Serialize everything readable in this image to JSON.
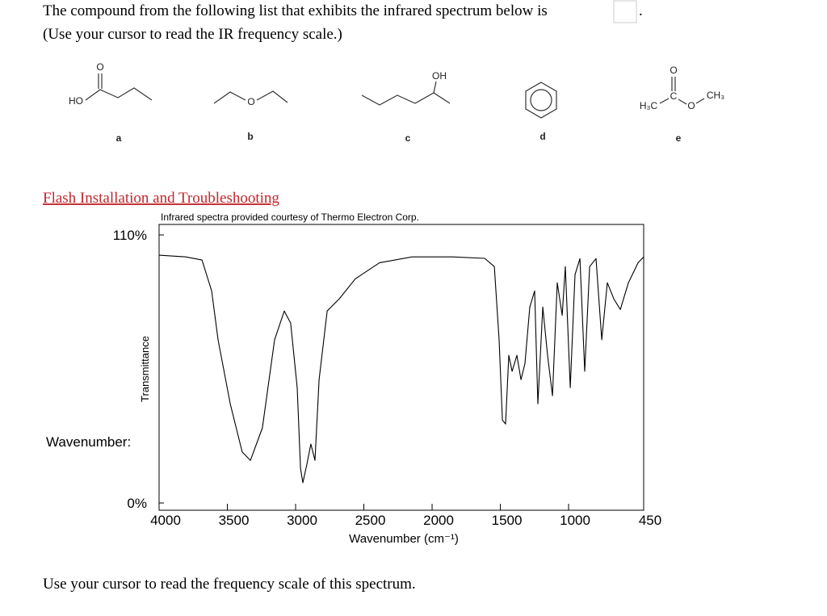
{
  "question": {
    "text": "The compound from the following list that exhibits the infrared spectrum below is",
    "end": ".",
    "instruction": "(Use your cursor to read the IR frequency scale.)"
  },
  "compounds": [
    {
      "letter": "a",
      "atoms": [
        "HO",
        "O"
      ]
    },
    {
      "letter": "b",
      "atoms": [
        "O"
      ]
    },
    {
      "letter": "c",
      "atoms": [
        "OH"
      ]
    },
    {
      "letter": "d"
    },
    {
      "letter": "e",
      "atoms": [
        "H₃C",
        "C",
        "O",
        "O",
        "CH₃"
      ]
    }
  ],
  "link": "Flash Installation and Troubleshooting",
  "chart_data": {
    "type": "line",
    "subtitle": "Infrared spectra provided courtesy of Thermo Electron Corp.",
    "x_label": "Wavenumber (cm⁻¹)",
    "y_label": "Transmittance",
    "annotation": "Wavenumber:",
    "x": [
      4000,
      3805,
      3686,
      3615,
      3568,
      3479,
      3391,
      3331,
      3243,
      3154,
      3083,
      3036,
      2988,
      2964,
      2947,
      2917,
      2888,
      2858,
      2828,
      2769,
      2680,
      2562,
      2385,
      2148,
      1852,
      1615,
      1544,
      1509,
      1485,
      1462,
      1438,
      1414,
      1379,
      1349,
      1320,
      1284,
      1249,
      1225,
      1189,
      1154,
      1118,
      1083,
      1047,
      1024,
      988,
      953,
      917,
      882,
      846,
      799,
      757,
      716,
      669,
      621,
      562,
      491,
      450
    ],
    "values": [
      101.7,
      101,
      99.7,
      87,
      67,
      40.7,
      20.9,
      17.5,
      30.8,
      67,
      78.8,
      73.8,
      47.3,
      14.2,
      8.3,
      15.9,
      24.2,
      17.5,
      50.6,
      78.8,
      83.8,
      92,
      98.6,
      101,
      101,
      100.4,
      97,
      67,
      34,
      32.4,
      60.6,
      54,
      60.6,
      50.6,
      57.3,
      80.4,
      87,
      40.7,
      80.4,
      60.6,
      44,
      90.4,
      77,
      97,
      47.3,
      93.7,
      100.3,
      54,
      97,
      100.3,
      67,
      90.4,
      83.8,
      79.4,
      90.4,
      98.6,
      101
    ],
    "color": "#000000",
    "xlim": [
      4000,
      450
    ],
    "ylim": [
      0,
      110
    ],
    "xticks": [
      4000,
      3500,
      3000,
      2500,
      2000,
      1500,
      1000,
      450
    ],
    "yticks": [
      {
        "value": 110,
        "label": "110%"
      },
      {
        "value": 0,
        "label": "0%"
      }
    ]
  },
  "footer": "Use your cursor to read the frequency scale of this spectrum."
}
